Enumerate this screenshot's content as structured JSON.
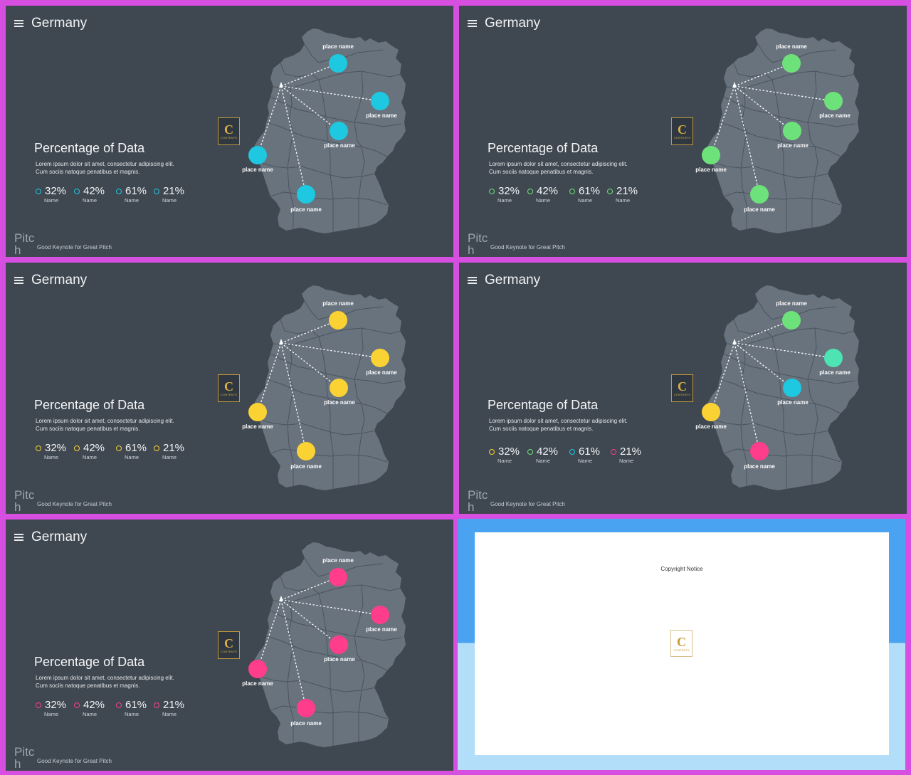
{
  "slides": [
    {
      "title": "Germany",
      "heading": "Percentage of Data",
      "lorem_line1": "Lorem ipsum dolor sit amet, consectetur adipiscing elit.",
      "lorem_line2": "Cum sociis natoque penatibus et magnis.",
      "stats": [
        {
          "value": "32%",
          "name": "Name",
          "color": "#1ec8e0"
        },
        {
          "value": "42%",
          "name": "Name",
          "color": "#1ec8e0"
        },
        {
          "value": "61%",
          "name": "Name",
          "color": "#1ec8e0"
        },
        {
          "value": "21%",
          "name": "Name",
          "color": "#1ec8e0"
        }
      ],
      "place_colors": [
        "#1ec8e0",
        "#1ec8e0",
        "#1ec8e0",
        "#1ec8e0",
        "#1ec8e0"
      ],
      "place_label": "place name",
      "brand": "Pitch",
      "tagline": "Good Keynote for Great Pitch",
      "logo_letter": "C",
      "logo_text": "CONTENTS"
    },
    {
      "title": "Germany",
      "heading": "Percentage of Data",
      "lorem_line1": "Lorem ipsum dolor sit amet, consectetur adipiscing elit.",
      "lorem_line2": "Cum sociis natoque penatibus et magnis.",
      "stats": [
        {
          "value": "32%",
          "name": "Name",
          "color": "#6ee27a"
        },
        {
          "value": "42%",
          "name": "Name",
          "color": "#6ee27a"
        },
        {
          "value": "61%",
          "name": "Name",
          "color": "#6ee27a"
        },
        {
          "value": "21%",
          "name": "Name",
          "color": "#6ee27a"
        }
      ],
      "place_colors": [
        "#6ee27a",
        "#6ee27a",
        "#6ee27a",
        "#6ee27a",
        "#6ee27a"
      ],
      "place_label": "place name",
      "brand": "Pitch",
      "tagline": "Good Keynote for Great Pitch",
      "logo_letter": "C",
      "logo_text": "CONTENTS"
    },
    {
      "title": "Germany",
      "heading": "Percentage of Data",
      "lorem_line1": "Lorem ipsum dolor sit amet, consectetur adipiscing elit.",
      "lorem_line2": "Cum sociis natoque penatibus et magnis.",
      "stats": [
        {
          "value": "32%",
          "name": "Name",
          "color": "#fbd233"
        },
        {
          "value": "42%",
          "name": "Name",
          "color": "#fbd233"
        },
        {
          "value": "61%",
          "name": "Name",
          "color": "#fbd233"
        },
        {
          "value": "21%",
          "name": "Name",
          "color": "#fbd233"
        }
      ],
      "place_colors": [
        "#fbd233",
        "#fbd233",
        "#fbd233",
        "#fbd233",
        "#fbd233"
      ],
      "place_label": "place name",
      "brand": "Pitch",
      "tagline": "Good Keynote for Great Pitch",
      "logo_letter": "C",
      "logo_text": "CONTENTS"
    },
    {
      "title": "Germany",
      "heading": "Percentage of Data",
      "lorem_line1": "Lorem ipsum dolor sit amet, consectetur adipiscing elit.",
      "lorem_line2": "Cum sociis natoque penatibus et magnis.",
      "stats": [
        {
          "value": "32%",
          "name": "Name",
          "color": "#fbd233"
        },
        {
          "value": "42%",
          "name": "Name",
          "color": "#6ee27a"
        },
        {
          "value": "61%",
          "name": "Name",
          "color": "#1ec8e0"
        },
        {
          "value": "21%",
          "name": "Name",
          "color": "#ff3d8a"
        }
      ],
      "place_colors": [
        "#6ee27a",
        "#4de3b3",
        "#1ec8e0",
        "#fbd233",
        "#ff3d8a"
      ],
      "place_label": "place name",
      "brand": "Pitch",
      "tagline": "Good Keynote for Great Pitch",
      "logo_letter": "C",
      "logo_text": "CONTENTS"
    },
    {
      "title": "Germany",
      "heading": "Percentage of Data",
      "lorem_line1": "Lorem ipsum dolor sit amet, consectetur adipiscing elit.",
      "lorem_line2": "Cum sociis natoque penatibus et magnis.",
      "stats": [
        {
          "value": "32%",
          "name": "Name",
          "color": "#ff3d8a"
        },
        {
          "value": "42%",
          "name": "Name",
          "color": "#ff3d8a"
        },
        {
          "value": "61%",
          "name": "Name",
          "color": "#ff3d8a"
        },
        {
          "value": "21%",
          "name": "Name",
          "color": "#ff3d8a"
        }
      ],
      "place_colors": [
        "#ff3d8a",
        "#ff3d8a",
        "#ff3d8a",
        "#ff3d8a",
        "#ff3d8a"
      ],
      "place_label": "place name",
      "brand": "Pitch",
      "tagline": "Good Keynote for Great Pitch",
      "logo_letter": "C",
      "logo_text": "CONTENTS"
    }
  ],
  "copyright": {
    "title": "Copyright Notice",
    "logo_letter": "C",
    "logo_text": "CONTENTS"
  },
  "colors": {
    "frame": "#d64fe0",
    "slide_bg": "#3f4750",
    "map_fill": "#69737e"
  }
}
